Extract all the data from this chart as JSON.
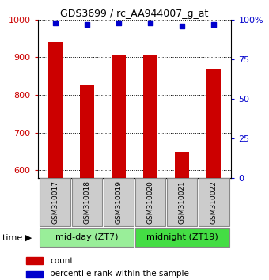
{
  "title": "GDS3699 / rc_AA944007_g_at",
  "samples": [
    "GSM310017",
    "GSM310018",
    "GSM310019",
    "GSM310020",
    "GSM310021",
    "GSM310022"
  ],
  "counts": [
    940,
    828,
    905,
    905,
    648,
    870
  ],
  "percentile_ranks": [
    98,
    97,
    98,
    98,
    96,
    97
  ],
  "ylim_left": [
    580,
    1000
  ],
  "ylim_right": [
    0,
    100
  ],
  "yticks_left": [
    600,
    700,
    800,
    900,
    1000
  ],
  "yticks_right": [
    0,
    25,
    50,
    75,
    100
  ],
  "left_color": "#cc0000",
  "right_color": "#0000cc",
  "bar_width": 0.45,
  "groups": [
    {
      "label": "mid-day (ZT7)",
      "samples": [
        0,
        1,
        2
      ],
      "color": "#99ee99"
    },
    {
      "label": "midnight (ZT19)",
      "samples": [
        3,
        4,
        5
      ],
      "color": "#44dd44"
    }
  ],
  "time_label": "time",
  "legend_count": "count",
  "legend_percentile": "percentile rank within the sample",
  "background_color": "#ffffff",
  "x_label_box_color": "#cccccc"
}
